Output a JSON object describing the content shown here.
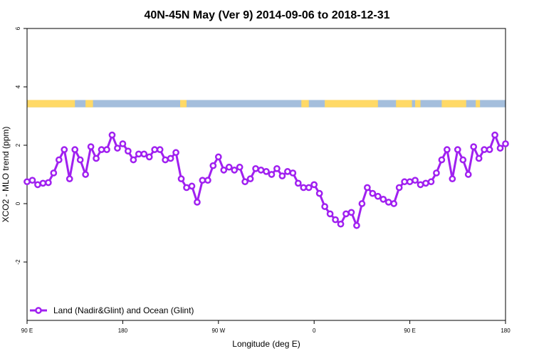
{
  "chart_data": {
    "type": "line",
    "title": "40N-45N May (Ver 9)   2014-09-06 to 2018-12-31",
    "xlabel": "Longitude (deg E)",
    "ylabel": "XCO2 - MLO trend (ppm)",
    "xlim": [
      90,
      540
    ],
    "ylim": [
      -4,
      6
    ],
    "x_ticks": [
      {
        "value": 90,
        "label": "90 E"
      },
      {
        "value": 180,
        "label": "180"
      },
      {
        "value": 270,
        "label": "90 W"
      },
      {
        "value": 360,
        "label": "0"
      },
      {
        "value": 450,
        "label": "90 E"
      },
      {
        "value": 540,
        "label": "180"
      }
    ],
    "y_ticks": [
      {
        "value": -2,
        "label": "-2"
      },
      {
        "value": 0,
        "label": "0"
      },
      {
        "value": 2,
        "label": "2"
      },
      {
        "value": 4,
        "label": "4"
      },
      {
        "value": 6,
        "label": "6"
      }
    ],
    "grid": false,
    "legend_position": "bottom-left",
    "land_ocean_band": {
      "y_range": [
        3.3,
        3.55
      ],
      "land_color": "#FFD966",
      "ocean_color": "#A4BEDC",
      "land_segments": [
        [
          90,
          135
        ],
        [
          145,
          152
        ],
        [
          234,
          240
        ],
        [
          348,
          355
        ],
        [
          370,
          420
        ],
        [
          437,
          452
        ],
        [
          455,
          460
        ],
        [
          480,
          503
        ],
        [
          512,
          516
        ]
      ]
    },
    "series": [
      {
        "name": "Land (Nadir&Glint) and Ocean (Glint)",
        "color": "#A020F0",
        "x": [
          90,
          95,
          100,
          105,
          110,
          115,
          120,
          125,
          130,
          135,
          140,
          145,
          150,
          155,
          160,
          165,
          170,
          175,
          180,
          185,
          190,
          195,
          200,
          205,
          210,
          215,
          220,
          225,
          230,
          235,
          240,
          245,
          250,
          255,
          260,
          265,
          270,
          275,
          280,
          285,
          290,
          295,
          300,
          305,
          310,
          315,
          320,
          325,
          330,
          335,
          340,
          345,
          350,
          355,
          360,
          365,
          370,
          375,
          380,
          385,
          390,
          395,
          400,
          405,
          410,
          415,
          420,
          425,
          430,
          435,
          440,
          445,
          450,
          455,
          460,
          465,
          470,
          475,
          480,
          485,
          490,
          495,
          500,
          505,
          510,
          515,
          520,
          525,
          530,
          535,
          540
        ],
        "y": [
          0.75,
          0.8,
          0.65,
          0.7,
          0.72,
          1.05,
          1.5,
          1.85,
          0.85,
          1.85,
          1.5,
          1.0,
          1.95,
          1.55,
          1.85,
          1.85,
          2.35,
          1.9,
          2.05,
          1.8,
          1.5,
          1.7,
          1.7,
          1.6,
          1.85,
          1.85,
          1.5,
          1.55,
          1.75,
          0.85,
          0.55,
          0.6,
          0.05,
          0.8,
          0.8,
          1.3,
          1.6,
          1.15,
          1.25,
          1.15,
          1.25,
          0.75,
          0.85,
          1.2,
          1.15,
          1.1,
          1.0,
          1.2,
          0.95,
          1.1,
          1.05,
          0.7,
          0.55,
          0.55,
          0.65,
          0.35,
          -0.1,
          -0.35,
          -0.55,
          -0.7,
          -0.35,
          -0.3,
          -0.75,
          0.0,
          0.55,
          0.35,
          0.25,
          0.15,
          0.05,
          0.0,
          0.55,
          0.75,
          0.75,
          0.8,
          0.65,
          0.7,
          0.75,
          1.05,
          1.5,
          1.85,
          0.85,
          1.85,
          1.5,
          1.0,
          1.95,
          1.55,
          1.85,
          1.85,
          2.35,
          1.9,
          2.05
        ]
      }
    ]
  }
}
